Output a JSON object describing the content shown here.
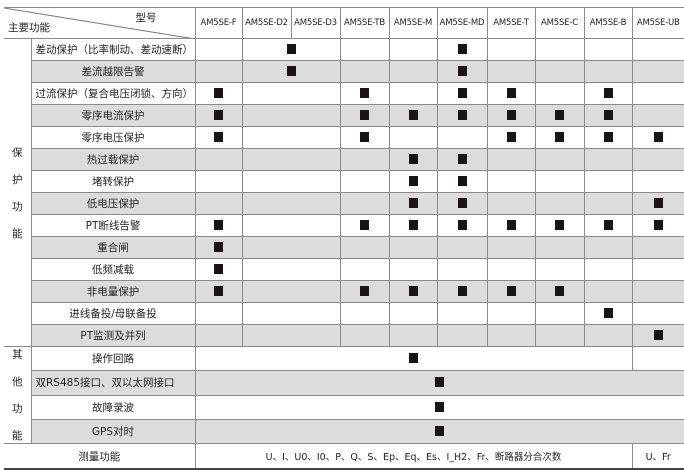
{
  "header": {
    "corner_model": "型号",
    "corner_function": "主要功能",
    "models": [
      "AM5SE-F",
      "AM5SE-D2",
      "AM5SE-D3",
      "AM5SE-TB",
      "AM5SE-M",
      "AM5SE-MD",
      "AM5SE-T",
      "AM5SE-C",
      "AM5SE-B",
      "AM5SE-UB"
    ]
  },
  "protection": {
    "group_label": [
      "保",
      "护",
      "功",
      "能"
    ],
    "columns_note": "F, D2/D3, TB, M, MD, T, C, B, UB",
    "rows": [
      {
        "label": "差动保护（比率制动、差动速断）",
        "align": "left",
        "marks": [
          0,
          1,
          0,
          0,
          1,
          0,
          0,
          0,
          0
        ]
      },
      {
        "label": "差流越限告警",
        "marks": [
          0,
          1,
          0,
          0,
          1,
          0,
          0,
          0,
          0
        ]
      },
      {
        "label": "过流保护（复合电压闭锁、方向）",
        "align": "left",
        "marks": [
          1,
          0,
          1,
          0,
          1,
          1,
          0,
          1,
          0
        ]
      },
      {
        "label": "零序电流保护",
        "marks": [
          1,
          0,
          1,
          1,
          1,
          1,
          1,
          1,
          0
        ]
      },
      {
        "label": "零序电压保护",
        "marks": [
          1,
          0,
          1,
          0,
          0,
          1,
          1,
          1,
          1
        ]
      },
      {
        "label": "热过载保护",
        "marks": [
          0,
          0,
          0,
          1,
          1,
          0,
          0,
          0,
          0
        ]
      },
      {
        "label": "堵转保护",
        "marks": [
          0,
          0,
          0,
          1,
          1,
          0,
          0,
          0,
          0
        ]
      },
      {
        "label": "低电压保护",
        "marks": [
          0,
          0,
          0,
          1,
          1,
          0,
          0,
          0,
          1
        ]
      },
      {
        "label": "PT断线告警",
        "marks": [
          1,
          0,
          1,
          1,
          1,
          1,
          1,
          1,
          1
        ]
      },
      {
        "label": "重合闸",
        "marks": [
          1,
          0,
          0,
          0,
          0,
          0,
          0,
          0,
          0
        ]
      },
      {
        "label": "低频减载",
        "marks": [
          1,
          0,
          0,
          0,
          0,
          0,
          0,
          0,
          0
        ]
      },
      {
        "label": "非电量保护",
        "marks": [
          1,
          0,
          1,
          1,
          1,
          1,
          1,
          0,
          0
        ]
      },
      {
        "label": "进线备投/母联备投",
        "marks": [
          0,
          0,
          0,
          0,
          0,
          0,
          0,
          1,
          0
        ]
      },
      {
        "label": "PT监测及并列",
        "marks": [
          0,
          0,
          0,
          0,
          0,
          0,
          0,
          0,
          1
        ]
      }
    ]
  },
  "other": {
    "group_label": [
      "其",
      "他",
      "功",
      "能"
    ],
    "rows": [
      {
        "label": "操作回路",
        "mark": true,
        "ub_separate": true
      },
      {
        "label": "双RS485接口、双以太网接口",
        "mark": true
      },
      {
        "label": "故障录波",
        "mark": true
      },
      {
        "label": "GPS对时",
        "mark": true
      }
    ]
  },
  "measurement": {
    "label": "测量功能",
    "main": "U、I、U0、I0、P、Q、S、Ep、Eq、Es、I_H2、Fr、断路器分合次数",
    "ub": "U、Fr"
  }
}
